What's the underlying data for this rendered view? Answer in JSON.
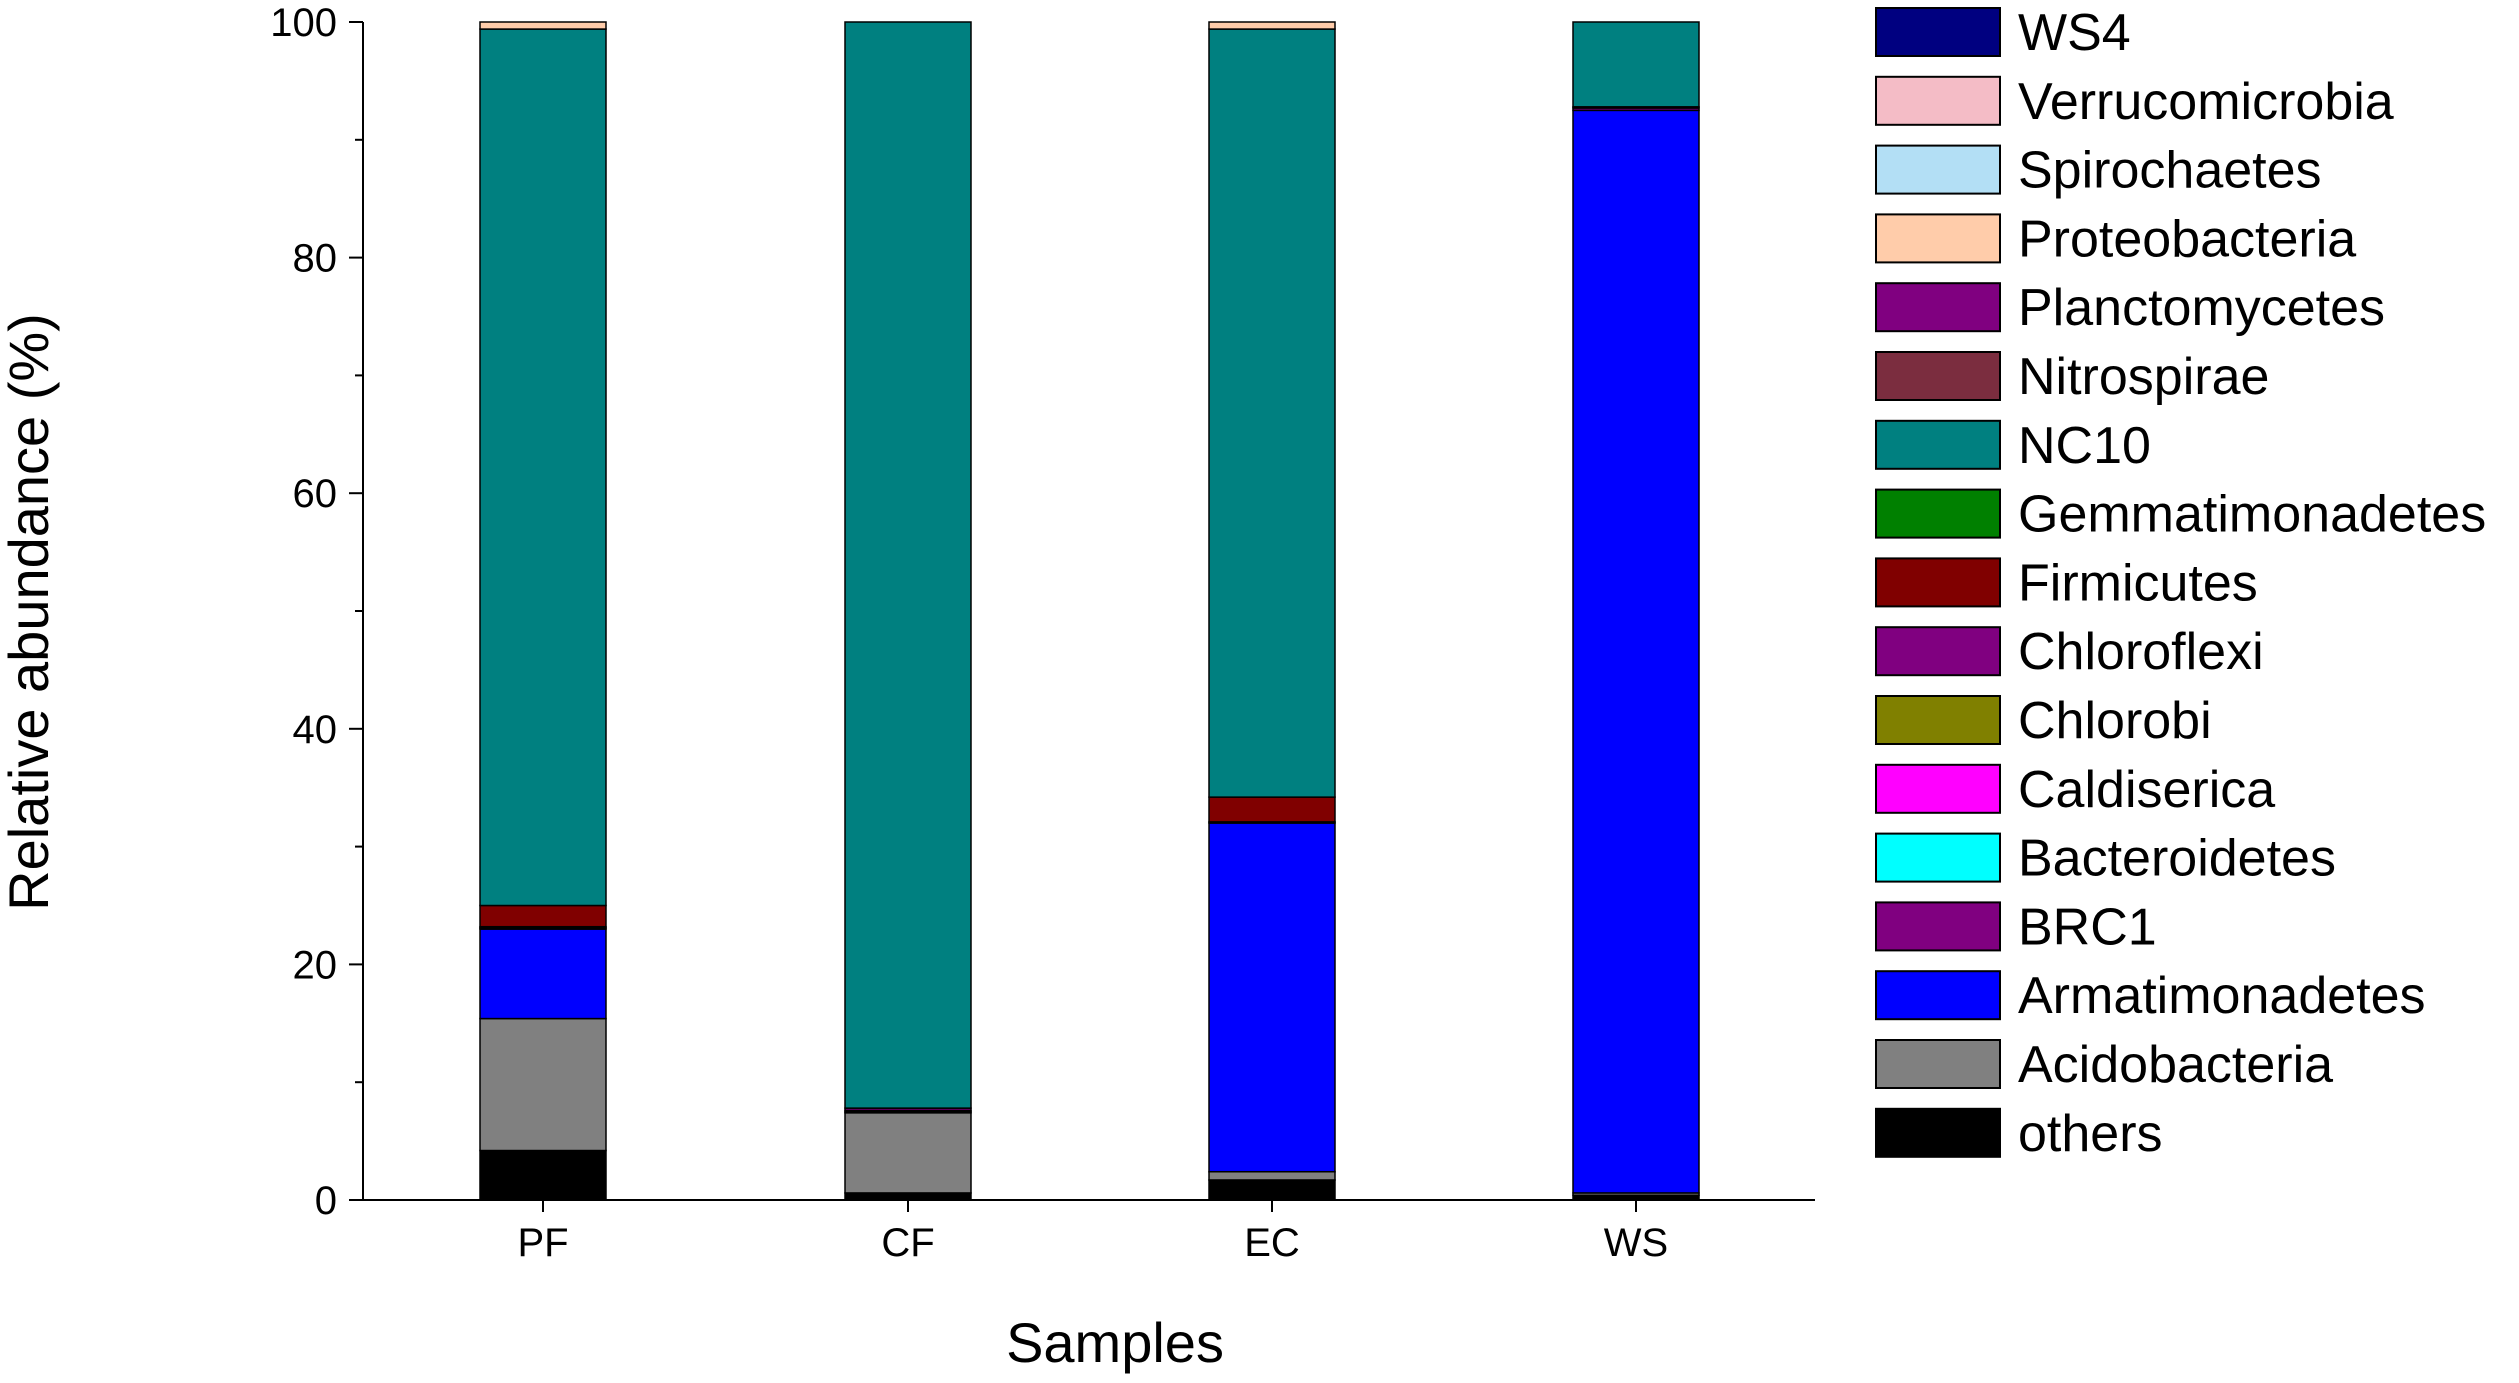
{
  "chart_data": {
    "type": "bar",
    "stacked": true,
    "xlabel": "Samples",
    "ylabel": "Relative  abundance (%)",
    "ylim": [
      0,
      100
    ],
    "yticks": [
      0,
      20,
      40,
      60,
      80,
      100
    ],
    "categories": [
      "PF",
      "CF",
      "EC",
      "WS"
    ],
    "legend_position": "right",
    "legend_order": [
      "WS4",
      "Verrucomicrobia",
      "Spirochaetes",
      "Proteobacteria",
      "Planctomycetes",
      "Nitrospirae",
      "NC10",
      "Gemmatimonadetes",
      "Firmicutes",
      "Chloroflexi",
      "Chlorobi",
      "Caldiserica",
      "Bacteroidetes",
      "BRC1",
      "Armatimonadetes",
      "Acidobacteria",
      "others"
    ],
    "series": [
      {
        "name": "others",
        "color": "#000000",
        "values": [
          4.2,
          0.6,
          1.7,
          0.4
        ]
      },
      {
        "name": "Acidobacteria",
        "color": "#808080",
        "values": [
          11.2,
          6.8,
          0.7,
          0.2
        ]
      },
      {
        "name": "Armatimonadetes",
        "color": "#0000ff",
        "values": [
          7.6,
          0.1,
          29.6,
          91.9
        ]
      },
      {
        "name": "BRC1",
        "color": "#800080",
        "values": [
          0.1,
          0.1,
          0.1,
          0.0
        ]
      },
      {
        "name": "Bacteroidetes",
        "color": "#00ffff",
        "values": [
          0.0,
          0.0,
          0.0,
          0.0
        ]
      },
      {
        "name": "Caldiserica",
        "color": "#ff00ff",
        "values": [
          0.0,
          0.0,
          0.0,
          0.0
        ]
      },
      {
        "name": "Chlorobi",
        "color": "#808000",
        "values": [
          0.0,
          0.0,
          0.0,
          0.0
        ]
      },
      {
        "name": "Chloroflexi",
        "color": "#800080",
        "values": [
          0.1,
          0.2,
          0.0,
          0.2
        ]
      },
      {
        "name": "Firmicutes",
        "color": "#800000",
        "values": [
          1.8,
          0.0,
          2.1,
          0.1
        ]
      },
      {
        "name": "Gemmatimonadetes",
        "color": "#008000",
        "values": [
          0.0,
          0.0,
          0.0,
          0.0
        ]
      },
      {
        "name": "NC10",
        "color": "#008080",
        "values": [
          74.4,
          92.2,
          65.2,
          7.2
        ]
      },
      {
        "name": "Nitrospirae",
        "color": "#7b2d3f",
        "values": [
          0.0,
          0.0,
          0.0,
          0.0
        ]
      },
      {
        "name": "Planctomycetes",
        "color": "#800080",
        "values": [
          0.0,
          0.0,
          0.0,
          0.0
        ]
      },
      {
        "name": "Proteobacteria",
        "color": "#ffccaa",
        "values": [
          0.6,
          0.0,
          0.6,
          0.0
        ]
      },
      {
        "name": "Spirochaetes",
        "color": "#b3dff5",
        "values": [
          0.0,
          0.0,
          0.0,
          0.0
        ]
      },
      {
        "name": "Verrucomicrobia",
        "color": "#f4bcc6",
        "values": [
          0.0,
          0.0,
          0.0,
          0.0
        ]
      },
      {
        "name": "WS4",
        "color": "#000080",
        "values": [
          0.0,
          0.0,
          0.0,
          0.0
        ]
      }
    ]
  }
}
